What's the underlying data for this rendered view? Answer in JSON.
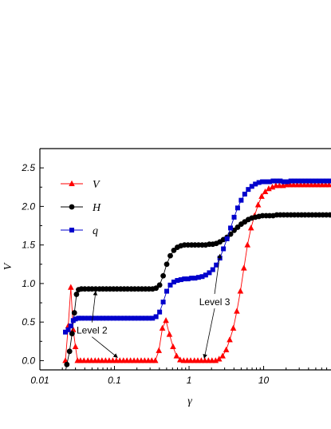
{
  "chart_data": {
    "type": "line",
    "xlabel": "γ",
    "ylabel": "V",
    "xscale": "log",
    "xlim": [
      0.01,
      80
    ],
    "ylim": [
      -0.12,
      2.75
    ],
    "xticks": [
      {
        "value": 0.01,
        "label": "0.01"
      },
      {
        "value": 0.1,
        "label": "0.1"
      },
      {
        "value": 1,
        "label": "1"
      },
      {
        "value": 10,
        "label": "10"
      }
    ],
    "yticks": [
      {
        "value": 0.0,
        "label": "0.0"
      },
      {
        "value": 0.5,
        "label": "0.5"
      },
      {
        "value": 1.0,
        "label": "1.0"
      },
      {
        "value": 1.5,
        "label": "1.5"
      },
      {
        "value": 2.0,
        "label": "2.0"
      },
      {
        "value": 2.5,
        "label": "2.5"
      }
    ],
    "legend": {
      "position": "top-left"
    },
    "series": [
      {
        "name": "V",
        "color": "#ff0000",
        "marker": "triangle",
        "points": [
          [
            0.022,
            0.0
          ],
          [
            0.024,
            0.45
          ],
          [
            0.026,
            0.95
          ],
          [
            0.028,
            0.4
          ],
          [
            0.03,
            0.18
          ],
          [
            0.032,
            0.0
          ],
          [
            0.035,
            0.0
          ],
          [
            0.039,
            0.0
          ],
          [
            0.044,
            0.0
          ],
          [
            0.049,
            0.0
          ],
          [
            0.055,
            0.0
          ],
          [
            0.061,
            0.0
          ],
          [
            0.068,
            0.0
          ],
          [
            0.076,
            0.0
          ],
          [
            0.085,
            0.0
          ],
          [
            0.095,
            0.0
          ],
          [
            0.106,
            0.0
          ],
          [
            0.118,
            0.0
          ],
          [
            0.132,
            0.0
          ],
          [
            0.147,
            0.0
          ],
          [
            0.164,
            0.0
          ],
          [
            0.183,
            0.0
          ],
          [
            0.204,
            0.0
          ],
          [
            0.228,
            0.0
          ],
          [
            0.254,
            0.0
          ],
          [
            0.284,
            0.0
          ],
          [
            0.316,
            0.0
          ],
          [
            0.353,
            0.0
          ],
          [
            0.394,
            0.13
          ],
          [
            0.439,
            0.42
          ],
          [
            0.49,
            0.52
          ],
          [
            0.546,
            0.34
          ],
          [
            0.61,
            0.18
          ],
          [
            0.68,
            0.06
          ],
          [
            0.759,
            0.01
          ],
          [
            0.847,
            0.0
          ],
          [
            0.945,
            0.0
          ],
          [
            1.05,
            0.0
          ],
          [
            1.18,
            0.0
          ],
          [
            1.31,
            0.0
          ],
          [
            1.46,
            0.0
          ],
          [
            1.63,
            0.0
          ],
          [
            1.82,
            0.0
          ],
          [
            2.03,
            0.0
          ],
          [
            2.27,
            0.0
          ],
          [
            2.53,
            0.02
          ],
          [
            2.82,
            0.06
          ],
          [
            3.15,
            0.14
          ],
          [
            3.51,
            0.27
          ],
          [
            3.92,
            0.42
          ],
          [
            4.37,
            0.64
          ],
          [
            4.88,
            0.9
          ],
          [
            5.44,
            1.2
          ],
          [
            6.07,
            1.5
          ],
          [
            6.77,
            1.72
          ],
          [
            7.56,
            1.88
          ],
          [
            8.43,
            2.02
          ],
          [
            9.4,
            2.13
          ],
          [
            10.5,
            2.19
          ],
          [
            11.7,
            2.23
          ],
          [
            13.1,
            2.25
          ],
          [
            14.6,
            2.27
          ],
          [
            16.3,
            2.27
          ],
          [
            18.2,
            2.27
          ],
          [
            20.3,
            2.28
          ],
          [
            22.6,
            2.28
          ],
          [
            25.2,
            2.28
          ],
          [
            28.2,
            2.28
          ],
          [
            31.4,
            2.28
          ],
          [
            35.1,
            2.28
          ],
          [
            39.1,
            2.28
          ],
          [
            43.6,
            2.28
          ],
          [
            48.7,
            2.28
          ],
          [
            54.3,
            2.28
          ],
          [
            60.6,
            2.28
          ],
          [
            67.6,
            2.28
          ],
          [
            75.4,
            2.28
          ]
        ]
      },
      {
        "name": "H",
        "color": "#000000",
        "marker": "circle",
        "points": [
          [
            0.021,
            -0.24
          ],
          [
            0.023,
            -0.05
          ],
          [
            0.025,
            0.12
          ],
          [
            0.027,
            0.35
          ],
          [
            0.029,
            0.62
          ],
          [
            0.031,
            0.86
          ],
          [
            0.033,
            0.92
          ],
          [
            0.036,
            0.93
          ],
          [
            0.04,
            0.93
          ],
          [
            0.045,
            0.93
          ],
          [
            0.05,
            0.93
          ],
          [
            0.056,
            0.93
          ],
          [
            0.063,
            0.93
          ],
          [
            0.07,
            0.93
          ],
          [
            0.078,
            0.93
          ],
          [
            0.087,
            0.93
          ],
          [
            0.097,
            0.93
          ],
          [
            0.108,
            0.93
          ],
          [
            0.121,
            0.93
          ],
          [
            0.135,
            0.93
          ],
          [
            0.15,
            0.93
          ],
          [
            0.168,
            0.93
          ],
          [
            0.187,
            0.93
          ],
          [
            0.209,
            0.93
          ],
          [
            0.233,
            0.93
          ],
          [
            0.26,
            0.93
          ],
          [
            0.29,
            0.93
          ],
          [
            0.324,
            0.93
          ],
          [
            0.361,
            0.94
          ],
          [
            0.403,
            0.98
          ],
          [
            0.45,
            1.1
          ],
          [
            0.502,
            1.25
          ],
          [
            0.56,
            1.36
          ],
          [
            0.625,
            1.43
          ],
          [
            0.697,
            1.47
          ],
          [
            0.778,
            1.49
          ],
          [
            0.868,
            1.5
          ],
          [
            0.968,
            1.5
          ],
          [
            1.08,
            1.5
          ],
          [
            1.2,
            1.5
          ],
          [
            1.34,
            1.5
          ],
          [
            1.5,
            1.5
          ],
          [
            1.67,
            1.5
          ],
          [
            1.87,
            1.51
          ],
          [
            2.08,
            1.51
          ],
          [
            2.32,
            1.52
          ],
          [
            2.59,
            1.54
          ],
          [
            2.89,
            1.57
          ],
          [
            3.23,
            1.6
          ],
          [
            3.6,
            1.64
          ],
          [
            4.02,
            1.69
          ],
          [
            4.48,
            1.73
          ],
          [
            5.0,
            1.77
          ],
          [
            5.58,
            1.8
          ],
          [
            6.23,
            1.83
          ],
          [
            6.95,
            1.85
          ],
          [
            7.75,
            1.86
          ],
          [
            8.65,
            1.87
          ],
          [
            9.65,
            1.88
          ],
          [
            10.8,
            1.88
          ],
          [
            12.0,
            1.88
          ],
          [
            13.4,
            1.88
          ],
          [
            15.0,
            1.89
          ],
          [
            16.7,
            1.89
          ],
          [
            18.6,
            1.89
          ],
          [
            20.8,
            1.89
          ],
          [
            23.2,
            1.89
          ],
          [
            25.9,
            1.89
          ],
          [
            28.9,
            1.89
          ],
          [
            32.2,
            1.89
          ],
          [
            35.9,
            1.89
          ],
          [
            40.1,
            1.89
          ],
          [
            44.7,
            1.89
          ],
          [
            49.9,
            1.89
          ],
          [
            55.7,
            1.89
          ],
          [
            62.1,
            1.89
          ],
          [
            69.3,
            1.89
          ],
          [
            77.3,
            1.89
          ]
        ]
      },
      {
        "name": "q",
        "color": "#0000cc",
        "marker": "square",
        "points": [
          [
            0.022,
            0.37
          ],
          [
            0.024,
            0.4
          ],
          [
            0.026,
            0.45
          ],
          [
            0.028,
            0.52
          ],
          [
            0.03,
            0.54
          ],
          [
            0.033,
            0.55
          ],
          [
            0.036,
            0.55
          ],
          [
            0.04,
            0.55
          ],
          [
            0.045,
            0.55
          ],
          [
            0.05,
            0.55
          ],
          [
            0.056,
            0.55
          ],
          [
            0.063,
            0.55
          ],
          [
            0.07,
            0.55
          ],
          [
            0.078,
            0.55
          ],
          [
            0.087,
            0.55
          ],
          [
            0.097,
            0.55
          ],
          [
            0.108,
            0.55
          ],
          [
            0.121,
            0.55
          ],
          [
            0.135,
            0.55
          ],
          [
            0.15,
            0.55
          ],
          [
            0.168,
            0.55
          ],
          [
            0.187,
            0.55
          ],
          [
            0.209,
            0.55
          ],
          [
            0.233,
            0.55
          ],
          [
            0.26,
            0.55
          ],
          [
            0.29,
            0.55
          ],
          [
            0.324,
            0.55
          ],
          [
            0.361,
            0.57
          ],
          [
            0.403,
            0.63
          ],
          [
            0.45,
            0.76
          ],
          [
            0.502,
            0.9
          ],
          [
            0.56,
            0.98
          ],
          [
            0.625,
            1.02
          ],
          [
            0.697,
            1.04
          ],
          [
            0.778,
            1.05
          ],
          [
            0.868,
            1.06
          ],
          [
            0.968,
            1.06
          ],
          [
            1.08,
            1.07
          ],
          [
            1.2,
            1.07
          ],
          [
            1.34,
            1.08
          ],
          [
            1.5,
            1.09
          ],
          [
            1.67,
            1.11
          ],
          [
            1.87,
            1.14
          ],
          [
            2.08,
            1.18
          ],
          [
            2.32,
            1.24
          ],
          [
            2.59,
            1.33
          ],
          [
            2.89,
            1.45
          ],
          [
            3.23,
            1.58
          ],
          [
            3.6,
            1.72
          ],
          [
            4.02,
            1.86
          ],
          [
            4.48,
            1.98
          ],
          [
            5.0,
            2.08
          ],
          [
            5.58,
            2.16
          ],
          [
            6.23,
            2.22
          ],
          [
            6.95,
            2.26
          ],
          [
            7.75,
            2.29
          ],
          [
            8.65,
            2.31
          ],
          [
            9.65,
            2.32
          ],
          [
            10.8,
            2.32
          ],
          [
            12.0,
            2.32
          ],
          [
            13.4,
            2.33
          ],
          [
            15.0,
            2.33
          ],
          [
            16.7,
            2.33
          ],
          [
            18.6,
            2.32
          ],
          [
            20.8,
            2.32
          ],
          [
            23.2,
            2.33
          ],
          [
            25.9,
            2.33
          ],
          [
            28.9,
            2.33
          ],
          [
            32.2,
            2.33
          ],
          [
            35.9,
            2.33
          ],
          [
            40.1,
            2.33
          ],
          [
            44.7,
            2.33
          ],
          [
            49.9,
            2.33
          ],
          [
            55.7,
            2.33
          ],
          [
            62.1,
            2.33
          ],
          [
            69.3,
            2.33
          ],
          [
            77.3,
            2.33
          ]
        ]
      }
    ],
    "annotations": [
      {
        "text": "Level 2",
        "x": 0.05,
        "y": 0.35,
        "arrows_to": [
          [
            0.056,
            0.9
          ],
          [
            0.11,
            0.04
          ]
        ]
      },
      {
        "text": "Level 3",
        "x": 2.2,
        "y": 0.72,
        "arrows_to": [
          [
            2.6,
            1.38
          ],
          [
            1.6,
            0.03
          ]
        ]
      }
    ]
  }
}
